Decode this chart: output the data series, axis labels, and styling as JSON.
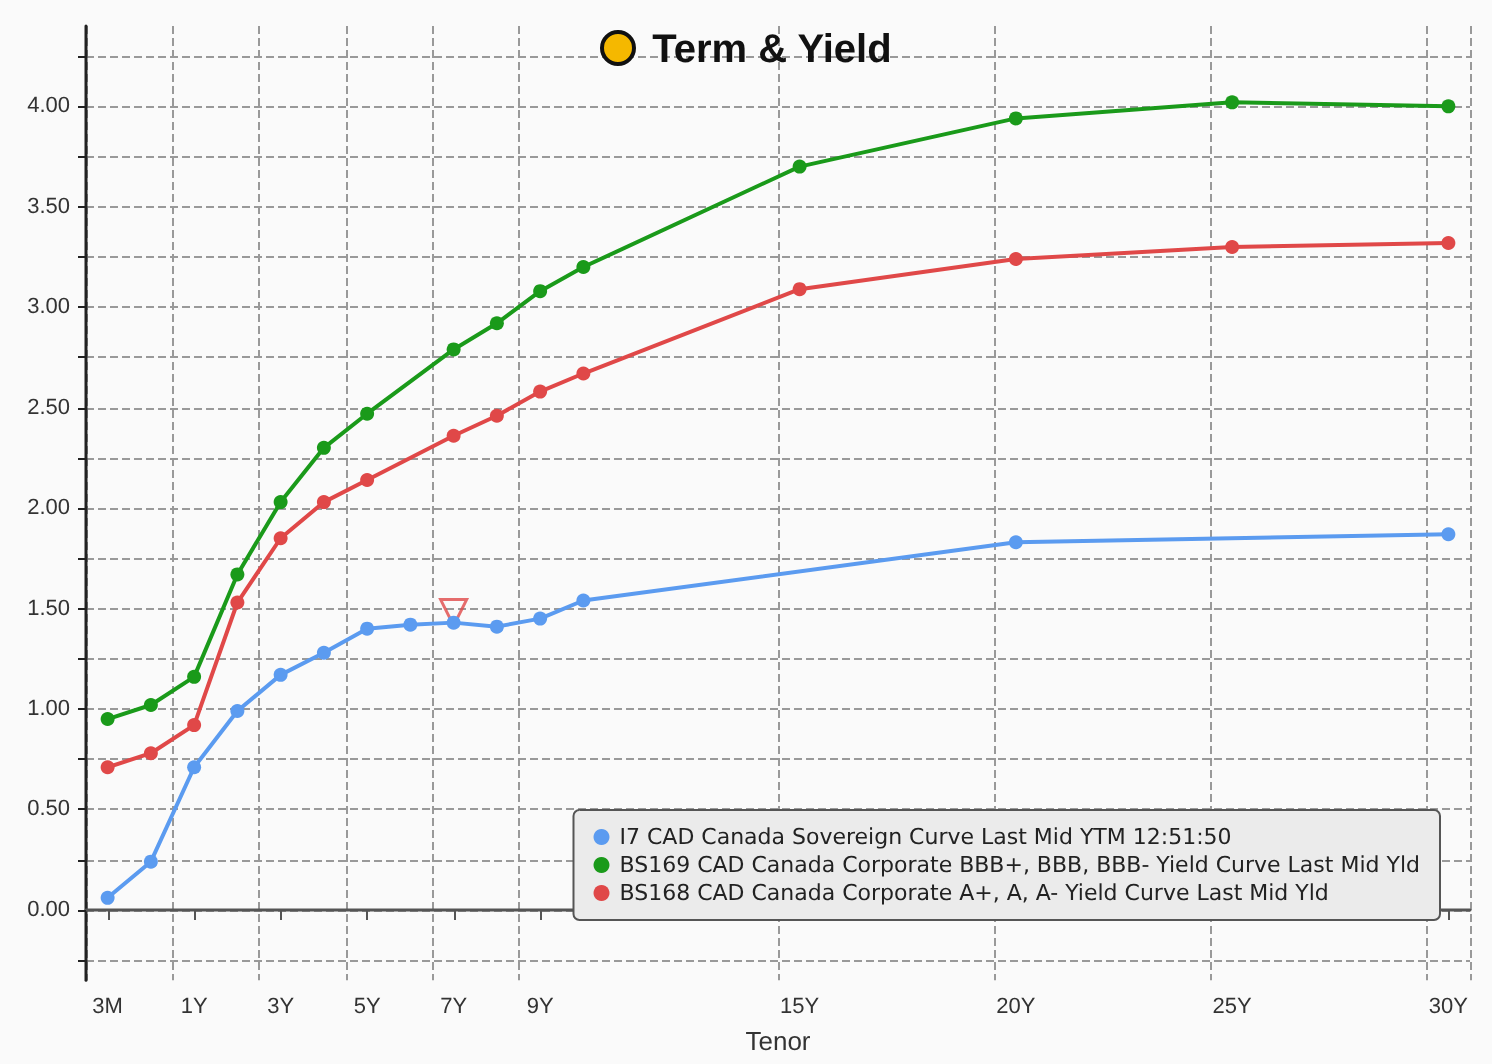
{
  "chart_data": {
    "type": "line",
    "title": "Term & Yield",
    "xlabel": "Tenor",
    "categories": [
      "3M",
      null,
      "1Y",
      null,
      "3Y",
      null,
      "5Y",
      null,
      "7Y",
      null,
      "9Y",
      null,
      null,
      null,
      null,
      null,
      "15Y",
      null,
      null,
      null,
      null,
      "20Y",
      null,
      null,
      null,
      null,
      "25Y",
      null,
      null,
      null,
      null,
      "30Y"
    ],
    "series": [
      {
        "name": "I7 CAD Canada Sovereign Curve Last Mid YTM 12:51:50",
        "color": "#5b9bf0",
        "values": [
          0.06,
          0.24,
          0.71,
          0.99,
          1.17,
          1.28,
          1.4,
          1.42,
          1.43,
          1.41,
          1.45,
          1.54,
          null,
          null,
          null,
          null,
          null,
          null,
          null,
          null,
          null,
          1.83,
          null,
          null,
          null,
          null,
          null,
          null,
          null,
          null,
          null,
          1.87
        ]
      },
      {
        "name": "BS169 CAD Canada Corporate BBB+, BBB, BBB- Yield Curve Last Mid Yld",
        "color": "#1a9a1a",
        "values": [
          0.95,
          1.02,
          1.16,
          1.67,
          2.03,
          2.3,
          2.47,
          null,
          2.79,
          2.92,
          3.08,
          3.2,
          null,
          null,
          null,
          null,
          3.7,
          null,
          null,
          null,
          null,
          3.94,
          null,
          null,
          null,
          null,
          4.02,
          null,
          null,
          null,
          null,
          4.0
        ]
      },
      {
        "name": "BS168 CAD Canada Corporate A+, A, A- Yield Curve Last Mid Yld",
        "color": "#e04848",
        "values": [
          0.71,
          0.78,
          0.92,
          1.53,
          1.85,
          2.03,
          2.14,
          null,
          2.36,
          2.46,
          2.58,
          2.67,
          null,
          null,
          null,
          null,
          3.09,
          null,
          null,
          null,
          null,
          3.24,
          null,
          null,
          null,
          null,
          3.3,
          null,
          null,
          null,
          null,
          3.32
        ]
      },
      {
        "type": "scatter",
        "marker": "triangle",
        "color": "#e04848",
        "values": [
          null,
          null,
          null,
          null,
          null,
          null,
          null,
          null,
          1.48,
          null,
          null,
          null,
          null,
          null,
          null,
          null,
          null,
          null,
          null,
          null,
          null,
          null,
          null,
          null,
          null,
          null,
          null,
          null,
          null,
          null,
          null,
          null
        ]
      }
    ],
    "ylim": [
      -0.35,
      4.4
    ],
    "yticks": [
      {
        "value": -0.25,
        "label": null
      },
      {
        "value": 0,
        "label": "0.00"
      },
      {
        "value": 0.25,
        "label": null
      },
      {
        "value": 0.5,
        "label": "0.50"
      },
      {
        "value": 0.75,
        "label": null
      },
      {
        "value": 1,
        "label": "1.00"
      },
      {
        "value": 1.25,
        "label": null
      },
      {
        "value": 1.5,
        "label": "1.50"
      },
      {
        "value": 1.75,
        "label": null
      },
      {
        "value": 2,
        "label": "2.00"
      },
      {
        "value": 2.25,
        "label": null
      },
      {
        "value": 2.5,
        "label": "2.50"
      },
      {
        "value": 2.75,
        "label": null
      },
      {
        "value": 3,
        "label": "3.00"
      },
      {
        "value": 3.25,
        "label": null
      },
      {
        "value": 3.5,
        "label": "3.50"
      },
      {
        "value": 3.75,
        "label": null
      },
      {
        "value": 4,
        "label": "4.00"
      },
      {
        "value": 4.25,
        "label": null
      }
    ],
    "grid": true,
    "legend": "bottom right",
    "marker": "circle",
    "line_style": "solid"
  }
}
